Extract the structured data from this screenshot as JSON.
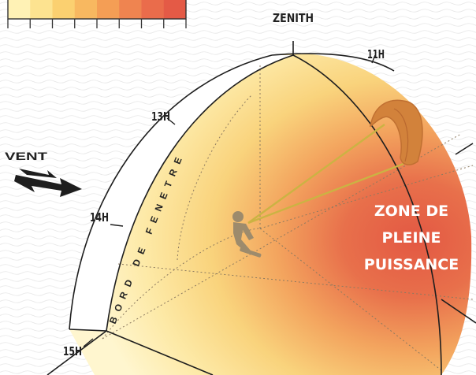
{
  "labels": {
    "zenith": "ZENITH",
    "h11": "11H",
    "h13": "13H",
    "h14": "14H",
    "h15": "15H",
    "wind": "VENT",
    "window_edge": "BORD DE FENETRE",
    "power_zone": [
      "ZONE DE",
      "PLEINE",
      "PUISSANCE"
    ]
  },
  "legend": {
    "colors": [
      "#fff2b5",
      "#fde390",
      "#fbd070",
      "#f8b860",
      "#f49e55",
      "#ef8450",
      "#ea6c4b",
      "#e45a46"
    ]
  },
  "colors": {
    "outline": "#1e1e1e",
    "power": "#e35a44",
    "light": "#fff4c6"
  }
}
